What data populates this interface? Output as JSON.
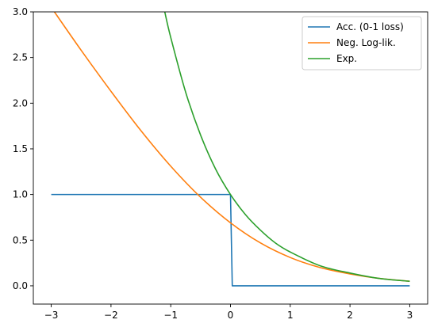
{
  "chart_data": {
    "type": "line",
    "title": "",
    "xlabel": "",
    "ylabel": "",
    "xlim": [
      -3.3,
      3.3
    ],
    "ylim": [
      -0.2,
      3.0
    ],
    "grid": false,
    "legend_position": "top-right",
    "x_ticks": [
      -3,
      -2,
      -1,
      0,
      1,
      2,
      3
    ],
    "x_tick_labels": [
      "−3",
      "−2",
      "−1",
      "0",
      "1",
      "2",
      "3"
    ],
    "y_ticks": [
      0.0,
      0.5,
      1.0,
      1.5,
      2.0,
      2.5,
      3.0
    ],
    "y_tick_labels": [
      "0.0",
      "0.5",
      "1.0",
      "1.5",
      "2.0",
      "2.5",
      "3.0"
    ],
    "series": [
      {
        "name": "Acc. (0-1 loss)",
        "color": "#1f77b4",
        "x": [
          -3,
          0,
          0.03,
          3
        ],
        "y": [
          1.0,
          1.0,
          0.0,
          0.0
        ]
      },
      {
        "name": "Neg. Log-lik.",
        "color": "#ff7f0e",
        "x": [
          -3.0,
          -2.5,
          -2.0,
          -1.5,
          -1.0,
          -0.5,
          0.0,
          0.5,
          1.0,
          1.5,
          2.0,
          2.5,
          3.0
        ],
        "y": [
          3.05,
          2.58,
          2.13,
          1.7,
          1.31,
          0.97,
          0.69,
          0.47,
          0.31,
          0.2,
          0.13,
          0.08,
          0.05
        ]
      },
      {
        "name": "Exp.",
        "color": "#2ca02c",
        "x": [
          -1.1,
          -1.0,
          -0.75,
          -0.5,
          -0.25,
          0.0,
          0.25,
          0.5,
          0.75,
          1.0,
          1.5,
          2.0,
          2.5,
          3.0
        ],
        "y": [
          3.0,
          2.72,
          2.12,
          1.65,
          1.28,
          1.0,
          0.78,
          0.61,
          0.47,
          0.37,
          0.22,
          0.14,
          0.08,
          0.05
        ]
      }
    ]
  }
}
